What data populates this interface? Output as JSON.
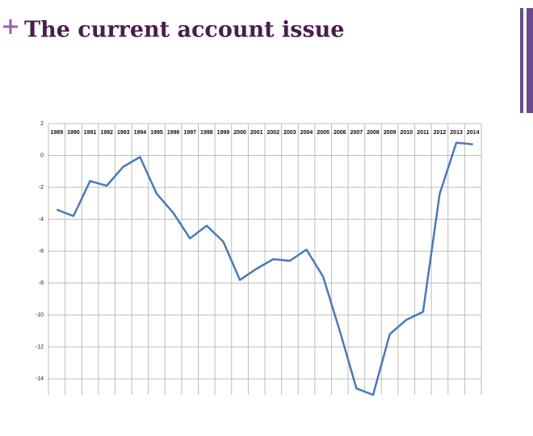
{
  "chart_data": {
    "type": "line",
    "title": "The current account issue",
    "categories": [
      "1989",
      "1990",
      "1991",
      "1992",
      "1993",
      "1994",
      "1995",
      "1996",
      "1997",
      "1998",
      "1999",
      "2000",
      "2001",
      "2002",
      "2003",
      "2004",
      "2005",
      "2006",
      "2007",
      "2008",
      "2009",
      "2010",
      "2011",
      "2012",
      "2013",
      "2014"
    ],
    "series": [
      {
        "color": "#4a7ab5",
        "values": [
          -3.4,
          -3.8,
          -1.6,
          -1.9,
          -0.7,
          -0.1,
          -2.4,
          -3.6,
          -5.2,
          -4.4,
          -5.4,
          -7.8,
          -7.1,
          -6.5,
          -6.6,
          -5.9,
          -7.6,
          -11.0,
          -14.6,
          -15.0,
          -11.2,
          -10.3,
          -9.8,
          -2.4,
          0.8,
          0.7
        ]
      }
    ],
    "ylim": [
      -15,
      2
    ],
    "yticks": [
      2,
      0,
      -2,
      -4,
      -6,
      -8,
      -10,
      -12,
      -14
    ],
    "grid": true
  }
}
